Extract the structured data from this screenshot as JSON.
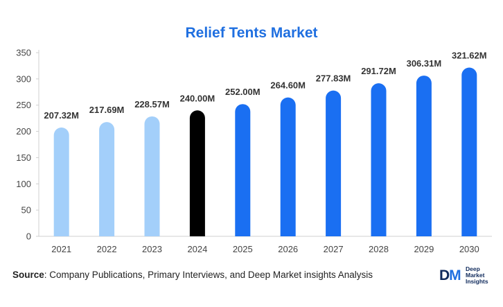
{
  "chart_data": {
    "type": "bar",
    "title": "Relief Tents Market",
    "categories": [
      "2021",
      "2022",
      "2023",
      "2024",
      "2025",
      "2026",
      "2027",
      "2028",
      "2029",
      "2030"
    ],
    "values": [
      207.32,
      217.69,
      228.57,
      240.0,
      252.0,
      264.6,
      277.83,
      291.72,
      306.31,
      321.62
    ],
    "data_labels": [
      "207.32M",
      "217.69M",
      "228.57M",
      "240.00M",
      "252.00M",
      "264.60M",
      "277.83M",
      "291.72M",
      "306.31M",
      "321.62M"
    ],
    "bar_colors": [
      "#a3cffa",
      "#a3cffa",
      "#a3cffa",
      "#000000",
      "#1a6ff2",
      "#1a6ff2",
      "#1a6ff2",
      "#1a6ff2",
      "#1a6ff2",
      "#1a6ff2"
    ],
    "y_ticks": [
      0,
      50,
      100,
      150,
      200,
      250,
      300,
      350
    ],
    "ylim": [
      0,
      350
    ],
    "xlabel": "",
    "ylabel": "",
    "grid": false
  },
  "source": {
    "label": "Source",
    "text": ": Company Publications, Primary Interviews, and Deep Market insights Analysis"
  },
  "logo": {
    "mark_d": "D",
    "mark_m": "M",
    "line1": "Deep",
    "line2": "Market",
    "line3": "Insights"
  }
}
